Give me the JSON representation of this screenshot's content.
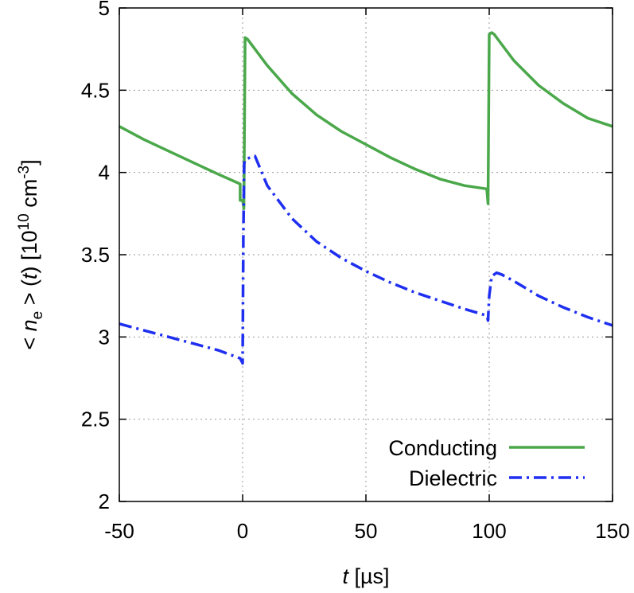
{
  "chart_data": {
    "type": "line",
    "xlabel": {
      "var": "t",
      "unit": " [µs]"
    },
    "ylabel": {
      "prefix": "< ",
      "var": "n",
      "sub": "e",
      "mid": " > (",
      "var2": "t",
      "mid2": ") [10",
      "exp": "10",
      "unit": " cm",
      "unit_exp": "-3",
      "end": "]"
    },
    "xlim": [
      -50,
      150
    ],
    "ylim": [
      2,
      5
    ],
    "xticks": [
      -50,
      0,
      50,
      100,
      150
    ],
    "xtick_labels": [
      "-50",
      "0",
      "50",
      "100",
      "150"
    ],
    "yticks": [
      2,
      2.5,
      3,
      3.5,
      4,
      4.5,
      5
    ],
    "ytick_labels": [
      "2",
      "2.5",
      "3",
      "3.5",
      "4",
      "4.5",
      "5"
    ],
    "grid": true,
    "legend_position": "bottom-right",
    "series": [
      {
        "name": "Conducting",
        "color": "#4aa84a",
        "style": "solid",
        "x": [
          -50,
          -40,
          -30,
          -20,
          -10,
          -1,
          -1,
          0,
          0.5,
          1,
          2,
          5,
          10,
          20,
          30,
          40,
          50,
          60,
          70,
          80,
          90,
          99,
          99.5,
          99.5,
          100,
          101,
          102,
          105,
          110,
          120,
          130,
          140,
          150
        ],
        "y": [
          4.28,
          4.2,
          4.13,
          4.06,
          3.99,
          3.93,
          3.83,
          3.83,
          3.78,
          4.82,
          4.81,
          4.75,
          4.65,
          4.48,
          4.35,
          4.25,
          4.17,
          4.09,
          4.02,
          3.96,
          3.92,
          3.9,
          3.81,
          3.81,
          4.84,
          4.85,
          4.84,
          4.78,
          4.68,
          4.53,
          4.42,
          4.33,
          4.28
        ]
      },
      {
        "name": "Dielectric",
        "color": "#1f2ff0",
        "style": "dashdot",
        "x": [
          -50,
          -40,
          -30,
          -20,
          -10,
          -1,
          0,
          0.3,
          0.6,
          1,
          3,
          5,
          10,
          20,
          30,
          40,
          50,
          60,
          70,
          80,
          90,
          99,
          99.5,
          100,
          101,
          103,
          105,
          110,
          120,
          130,
          140,
          150
        ],
        "y": [
          3.08,
          3.04,
          3.0,
          2.96,
          2.92,
          2.87,
          2.84,
          3.6,
          4.05,
          4.08,
          4.09,
          4.1,
          3.92,
          3.72,
          3.58,
          3.48,
          3.4,
          3.33,
          3.27,
          3.22,
          3.17,
          3.13,
          3.1,
          3.25,
          3.37,
          3.39,
          3.38,
          3.34,
          3.25,
          3.18,
          3.12,
          3.07
        ]
      }
    ]
  }
}
